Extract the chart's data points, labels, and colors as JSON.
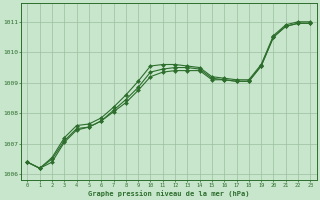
{
  "xlabel": "Graphe pression niveau de la mer (hPa)",
  "bg_color": "#c8e6cc",
  "grid_color": "#9dbfa0",
  "line_color": "#2d6e2d",
  "marker_color": "#2d6e2d",
  "xlim": [
    -0.5,
    23.5
  ],
  "ylim": [
    1005.8,
    1011.6
  ],
  "yticks": [
    1006,
    1007,
    1008,
    1009,
    1010,
    1011
  ],
  "xticks": [
    0,
    1,
    2,
    3,
    4,
    5,
    6,
    7,
    8,
    9,
    10,
    11,
    12,
    13,
    14,
    15,
    16,
    17,
    18,
    19,
    20,
    21,
    22,
    23
  ],
  "series": [
    [
      1006.4,
      1006.2,
      1006.4,
      1007.05,
      1007.45,
      1007.55,
      1007.75,
      1008.05,
      1008.35,
      1008.75,
      1009.2,
      1009.35,
      1009.4,
      1009.4,
      1009.4,
      1009.1,
      1009.1,
      1009.05,
      1009.05,
      1009.55,
      1010.5,
      1010.85,
      1010.95,
      1010.95
    ],
    [
      1006.4,
      1006.2,
      1006.5,
      1007.1,
      1007.5,
      1007.55,
      1007.75,
      1008.1,
      1008.45,
      1008.85,
      1009.35,
      1009.45,
      1009.5,
      1009.5,
      1009.45,
      1009.15,
      1009.1,
      1009.05,
      1009.05,
      1009.55,
      1010.5,
      1010.85,
      1010.95,
      1010.95
    ],
    [
      1006.4,
      1006.2,
      1006.55,
      1007.2,
      1007.6,
      1007.65,
      1007.85,
      1008.2,
      1008.6,
      1009.05,
      1009.55,
      1009.6,
      1009.6,
      1009.55,
      1009.5,
      1009.2,
      1009.15,
      1009.1,
      1009.1,
      1009.6,
      1010.55,
      1010.9,
      1011.0,
      1011.0
    ]
  ]
}
